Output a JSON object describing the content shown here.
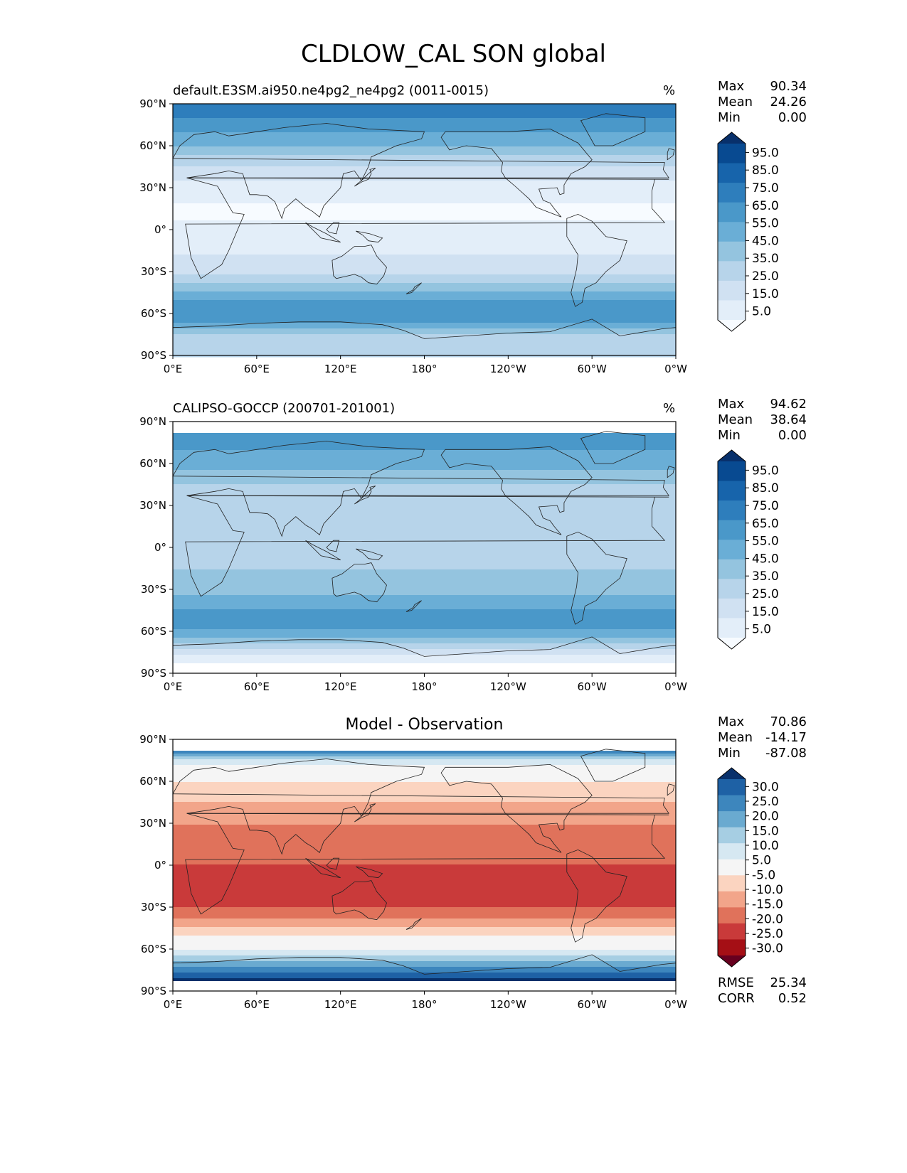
{
  "title": "CLDLOW_CAL SON global",
  "panels": [
    {
      "title": "default.E3SM.ai950.ne4pg2_ne4pg2 (0011-0015)",
      "units": "%",
      "stats": [
        {
          "label": "Max",
          "value": "90.34"
        },
        {
          "label": "Mean",
          "value": "24.26"
        },
        {
          "label": "Min",
          "value": "0.00"
        }
      ]
    },
    {
      "title": "CALIPSO-GOCCP (200701-201001)",
      "units": "%",
      "stats": [
        {
          "label": "Max",
          "value": "94.62"
        },
        {
          "label": "Mean",
          "value": "38.64"
        },
        {
          "label": "Min",
          "value": "0.00"
        }
      ]
    },
    {
      "title": "Model - Observation",
      "units": "",
      "stats": [
        {
          "label": "Max",
          "value": "70.86"
        },
        {
          "label": "Mean",
          "value": "-14.17"
        },
        {
          "label": "Min",
          "value": "-87.08"
        }
      ],
      "metrics": [
        {
          "label": "RMSE",
          "value": "25.34"
        },
        {
          "label": "CORR",
          "value": "0.52"
        }
      ]
    }
  ],
  "chart_data": [
    {
      "type": "heatmap",
      "title": "default.E3SM.ai950.ne4pg2_ne4pg2 (0011-0015)",
      "x_ticks": [
        "0°E",
        "60°E",
        "120°E",
        "180°",
        "120°W",
        "60°W",
        "0°W"
      ],
      "y_ticks": [
        "90°N",
        "60°N",
        "30°N",
        "0°",
        "30°S",
        "60°S",
        "90°S"
      ],
      "xlim": [
        0,
        360
      ],
      "ylim": [
        -90,
        90
      ],
      "colorbar_levels": [
        "95.0",
        "85.0",
        "75.0",
        "65.0",
        "55.0",
        "45.0",
        "35.0",
        "25.0",
        "15.0",
        "5.0"
      ],
      "colormap": "Blues",
      "zonal_mean_profile": [
        {
          "lat": 85,
          "value": 75
        },
        {
          "lat": 70,
          "value": 60
        },
        {
          "lat": 60,
          "value": 50
        },
        {
          "lat": 45,
          "value": 30
        },
        {
          "lat": 30,
          "value": 15
        },
        {
          "lat": 15,
          "value": 8
        },
        {
          "lat": 0,
          "value": 12
        },
        {
          "lat": -15,
          "value": 18
        },
        {
          "lat": -30,
          "value": 28
        },
        {
          "lat": -45,
          "value": 50
        },
        {
          "lat": -55,
          "value": 70
        },
        {
          "lat": -65,
          "value": 65
        },
        {
          "lat": -80,
          "value": 30
        }
      ]
    },
    {
      "type": "heatmap",
      "title": "CALIPSO-GOCCP (200701-201001)",
      "x_ticks": [
        "0°E",
        "60°E",
        "120°E",
        "180°",
        "120°W",
        "60°W",
        "0°W"
      ],
      "y_ticks": [
        "90°N",
        "60°N",
        "30°N",
        "0°",
        "30°S",
        "60°S",
        "90°S"
      ],
      "xlim": [
        0,
        360
      ],
      "ylim": [
        -90,
        90
      ],
      "colorbar_levels": [
        "95.0",
        "85.0",
        "75.0",
        "65.0",
        "55.0",
        "45.0",
        "35.0",
        "25.0",
        "15.0",
        "5.0"
      ],
      "colormap": "Blues",
      "zonal_mean_profile": [
        {
          "lat": 80,
          "value": 65
        },
        {
          "lat": 70,
          "value": 60
        },
        {
          "lat": 60,
          "value": 55
        },
        {
          "lat": 45,
          "value": 40
        },
        {
          "lat": 30,
          "value": 30
        },
        {
          "lat": 15,
          "value": 30
        },
        {
          "lat": 0,
          "value": 32
        },
        {
          "lat": -15,
          "value": 40
        },
        {
          "lat": -30,
          "value": 45
        },
        {
          "lat": -45,
          "value": 60
        },
        {
          "lat": -55,
          "value": 65
        },
        {
          "lat": -65,
          "value": 50
        },
        {
          "lat": -80,
          "value": 10
        }
      ]
    },
    {
      "type": "heatmap",
      "title": "Model - Observation",
      "x_ticks": [
        "0°E",
        "60°E",
        "120°E",
        "180°",
        "120°W",
        "60°W",
        "0°W"
      ],
      "y_ticks": [
        "90°N",
        "60°N",
        "30°N",
        "0°",
        "30°S",
        "60°S",
        "90°S"
      ],
      "xlim": [
        0,
        360
      ],
      "ylim": [
        -90,
        90
      ],
      "colorbar_levels": [
        "30.0",
        "25.0",
        "20.0",
        "15.0",
        "10.0",
        "5.0",
        "-5.0",
        "-10.0",
        "-15.0",
        "-20.0",
        "-25.0",
        "-30.0"
      ],
      "colormap": "RdBu",
      "zonal_mean_profile": [
        {
          "lat": 80,
          "value": 20
        },
        {
          "lat": 70,
          "value": 0
        },
        {
          "lat": 60,
          "value": -5
        },
        {
          "lat": 45,
          "value": -10
        },
        {
          "lat": 30,
          "value": -15
        },
        {
          "lat": 15,
          "value": -20
        },
        {
          "lat": 0,
          "value": -20
        },
        {
          "lat": -15,
          "value": -22
        },
        {
          "lat": -30,
          "value": -20
        },
        {
          "lat": -45,
          "value": -10
        },
        {
          "lat": -55,
          "value": 0
        },
        {
          "lat": -65,
          "value": 10
        },
        {
          "lat": -80,
          "value": 30
        }
      ]
    }
  ]
}
